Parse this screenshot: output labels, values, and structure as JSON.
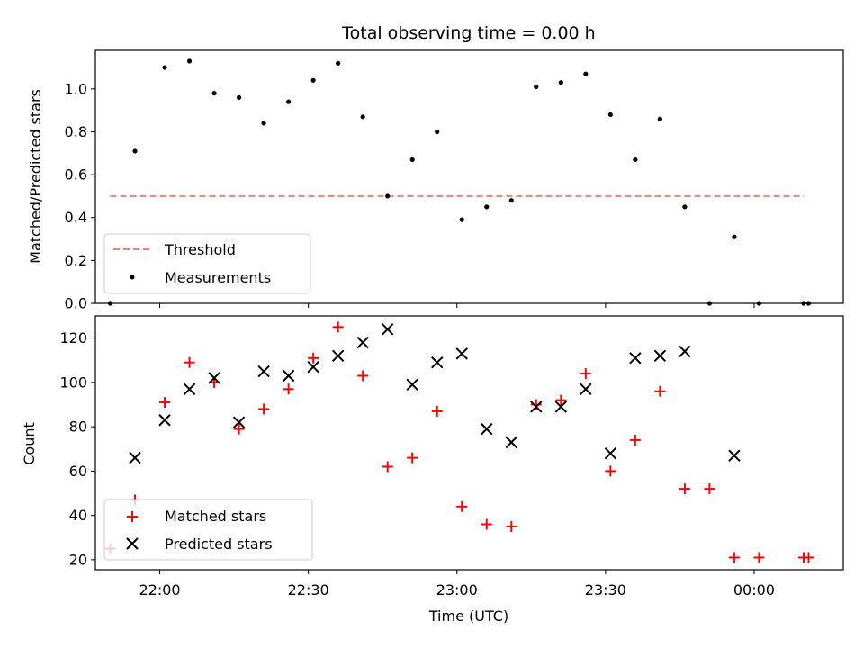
{
  "chart_data": [
    {
      "type": "scatter",
      "title": "Total observing time = 0.00 h",
      "xlabel": "",
      "ylabel": "Matched/Predicted stars",
      "ylim": [
        0,
        1.18
      ],
      "yticks": [
        "0.0",
        "0.2",
        "0.4",
        "0.6",
        "0.8",
        "1.0"
      ],
      "xlim": [
        "21:47",
        "00:18"
      ],
      "grid": false,
      "legend_position": "lower-left",
      "series": [
        {
          "name": "Threshold",
          "kind": "dashed-line",
          "color": "#f08080",
          "points": [
            {
              "t": "21:50",
              "y": 0.5
            },
            {
              "t": "00:10",
              "y": 0.5
            }
          ]
        },
        {
          "name": "Measurements",
          "kind": "dot",
          "color": "#000000",
          "points": [
            {
              "t": "21:50",
              "y": 0.0
            },
            {
              "t": "21:55",
              "y": 0.71
            },
            {
              "t": "22:01",
              "y": 1.1
            },
            {
              "t": "22:06",
              "y": 1.13
            },
            {
              "t": "22:11",
              "y": 0.98
            },
            {
              "t": "22:16",
              "y": 0.96
            },
            {
              "t": "22:21",
              "y": 0.84
            },
            {
              "t": "22:26",
              "y": 0.94
            },
            {
              "t": "22:31",
              "y": 1.04
            },
            {
              "t": "22:36",
              "y": 1.12
            },
            {
              "t": "22:41",
              "y": 0.87
            },
            {
              "t": "22:46",
              "y": 0.5
            },
            {
              "t": "22:51",
              "y": 0.67
            },
            {
              "t": "22:56",
              "y": 0.8
            },
            {
              "t": "23:01",
              "y": 0.39
            },
            {
              "t": "23:06",
              "y": 0.45
            },
            {
              "t": "23:11",
              "y": 0.48
            },
            {
              "t": "23:16",
              "y": 1.01
            },
            {
              "t": "23:21",
              "y": 1.03
            },
            {
              "t": "23:26",
              "y": 1.07
            },
            {
              "t": "23:31",
              "y": 0.88
            },
            {
              "t": "23:36",
              "y": 0.67
            },
            {
              "t": "23:41",
              "y": 0.86
            },
            {
              "t": "23:46",
              "y": 0.45
            },
            {
              "t": "23:51",
              "y": 0.0
            },
            {
              "t": "23:56",
              "y": 0.31
            },
            {
              "t": "00:01",
              "y": 0.0
            },
            {
              "t": "00:10",
              "y": 0.0
            },
            {
              "t": "00:11",
              "y": 0.0
            }
          ]
        }
      ]
    },
    {
      "type": "scatter",
      "title": "",
      "xlabel": "Time (UTC)",
      "ylabel": "Count",
      "ylim": [
        15.5,
        130
      ],
      "yticks": [
        "20",
        "40",
        "60",
        "80",
        "100",
        "120"
      ],
      "xlim": [
        "21:47",
        "00:18"
      ],
      "xticks": [
        "22:00",
        "22:30",
        "23:00",
        "23:30",
        "00:00"
      ],
      "grid": false,
      "legend_position": "lower-left",
      "series": [
        {
          "name": "Matched stars",
          "kind": "plus",
          "color": "#ff0000",
          "points": [
            {
              "t": "21:50",
              "y": 25
            },
            {
              "t": "21:55",
              "y": 47
            },
            {
              "t": "22:01",
              "y": 91
            },
            {
              "t": "22:06",
              "y": 109
            },
            {
              "t": "22:11",
              "y": 100
            },
            {
              "t": "22:16",
              "y": 79
            },
            {
              "t": "22:21",
              "y": 88
            },
            {
              "t": "22:26",
              "y": 97
            },
            {
              "t": "22:31",
              "y": 111
            },
            {
              "t": "22:36",
              "y": 125
            },
            {
              "t": "22:41",
              "y": 103
            },
            {
              "t": "22:46",
              "y": 62
            },
            {
              "t": "22:51",
              "y": 66
            },
            {
              "t": "22:56",
              "y": 87
            },
            {
              "t": "23:01",
              "y": 44
            },
            {
              "t": "23:06",
              "y": 36
            },
            {
              "t": "23:11",
              "y": 35
            },
            {
              "t": "23:16",
              "y": 90
            },
            {
              "t": "23:21",
              "y": 92
            },
            {
              "t": "23:26",
              "y": 104
            },
            {
              "t": "23:31",
              "y": 60
            },
            {
              "t": "23:36",
              "y": 74
            },
            {
              "t": "23:41",
              "y": 96
            },
            {
              "t": "23:46",
              "y": 52
            },
            {
              "t": "23:51",
              "y": 52
            },
            {
              "t": "23:56",
              "y": 21
            },
            {
              "t": "00:01",
              "y": 21
            },
            {
              "t": "00:10",
              "y": 21
            },
            {
              "t": "00:11",
              "y": 21
            }
          ]
        },
        {
          "name": "Predicted stars",
          "kind": "x",
          "color": "#000000",
          "points": [
            {
              "t": "21:55",
              "y": 66
            },
            {
              "t": "22:01",
              "y": 83
            },
            {
              "t": "22:06",
              "y": 97
            },
            {
              "t": "22:11",
              "y": 102
            },
            {
              "t": "22:16",
              "y": 82
            },
            {
              "t": "22:21",
              "y": 105
            },
            {
              "t": "22:26",
              "y": 103
            },
            {
              "t": "22:31",
              "y": 107
            },
            {
              "t": "22:36",
              "y": 112
            },
            {
              "t": "22:41",
              "y": 118
            },
            {
              "t": "22:46",
              "y": 124
            },
            {
              "t": "22:51",
              "y": 99
            },
            {
              "t": "22:56",
              "y": 109
            },
            {
              "t": "23:01",
              "y": 113
            },
            {
              "t": "23:06",
              "y": 79
            },
            {
              "t": "23:11",
              "y": 73
            },
            {
              "t": "23:16",
              "y": 89
            },
            {
              "t": "23:21",
              "y": 89
            },
            {
              "t": "23:26",
              "y": 97
            },
            {
              "t": "23:31",
              "y": 68
            },
            {
              "t": "23:36",
              "y": 111
            },
            {
              "t": "23:41",
              "y": 112
            },
            {
              "t": "23:46",
              "y": 114
            },
            {
              "t": "23:56",
              "y": 67
            }
          ]
        }
      ]
    }
  ]
}
